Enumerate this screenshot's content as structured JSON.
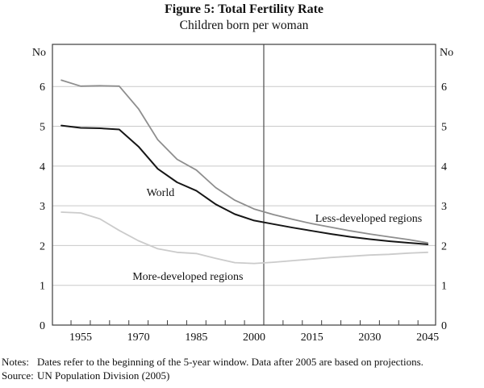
{
  "title": "Figure 5: Total Fertility Rate",
  "subtitle": "Children born per woman",
  "unit_label_left": "No",
  "unit_label_right": "No",
  "notes": {
    "notes_label": "Notes:",
    "notes_text": "Dates refer to the beginning of the 5-year window. Data after 2005 are based on projections.",
    "source_label": "Source:",
    "source_text": "UN Population Division (2005)"
  },
  "colors": {
    "world_line": "#161616",
    "less_developed_line": "#8e8e8e",
    "more_developed_line": "#cbcbcb",
    "gridline": "#c9c9c9",
    "frame": "#3d3d3d",
    "divider": "#4d4d4d",
    "text": "#111111"
  },
  "chart_data": {
    "type": "line",
    "title": "Figure 5: Total Fertility Rate",
    "subtitle": "Children born per woman",
    "ylabel": "No (children born per woman)",
    "xlabel": "",
    "grid": true,
    "legend_position": "inline-annotations",
    "x": [
      1950,
      1955,
      1960,
      1965,
      1970,
      1975,
      1980,
      1985,
      1990,
      1995,
      2000,
      2005,
      2010,
      2015,
      2020,
      2025,
      2030,
      2035,
      2040,
      2045
    ],
    "series": [
      {
        "name": "World",
        "values": [
          5.02,
          4.96,
          4.95,
          4.92,
          4.49,
          3.93,
          3.59,
          3.38,
          3.04,
          2.79,
          2.63,
          2.54,
          2.45,
          2.37,
          2.29,
          2.22,
          2.16,
          2.11,
          2.07,
          2.03
        ]
      },
      {
        "name": "Less-developed regions",
        "values": [
          6.16,
          6.01,
          6.02,
          6.01,
          5.44,
          4.66,
          4.17,
          3.9,
          3.46,
          3.14,
          2.92,
          2.78,
          2.66,
          2.55,
          2.46,
          2.37,
          2.29,
          2.22,
          2.15,
          2.07
        ]
      },
      {
        "name": "More-developed regions",
        "values": [
          2.84,
          2.82,
          2.67,
          2.38,
          2.12,
          1.92,
          1.83,
          1.8,
          1.68,
          1.57,
          1.55,
          1.58,
          1.62,
          1.66,
          1.7,
          1.73,
          1.76,
          1.78,
          1.81,
          1.83
        ]
      }
    ],
    "annotations": [
      {
        "text": "World",
        "x": 1975.7,
        "y": 3.35
      },
      {
        "text": "Less-developed regions",
        "x": 2029.7,
        "y": 2.7
      },
      {
        "text": "More-developed regions",
        "x": 1982.8,
        "y": 1.24
      }
    ],
    "divider_year": 2002.5,
    "x_axis": {
      "xlim": [
        1947.68,
        2047.07
      ],
      "tick_label_years": [
        1955,
        1970,
        1985,
        2000,
        2015,
        2030,
        2045
      ],
      "minor_tick_start": 1952.5,
      "minor_tick_step": 5,
      "minor_tick_end": 2042.5
    },
    "y_axis": {
      "ylim": [
        0,
        7.06
      ],
      "ticks": [
        0,
        1,
        2,
        3,
        4,
        5,
        6
      ],
      "gridlines": [
        1,
        2,
        3,
        4,
        5,
        6
      ],
      "unit": "No"
    }
  }
}
